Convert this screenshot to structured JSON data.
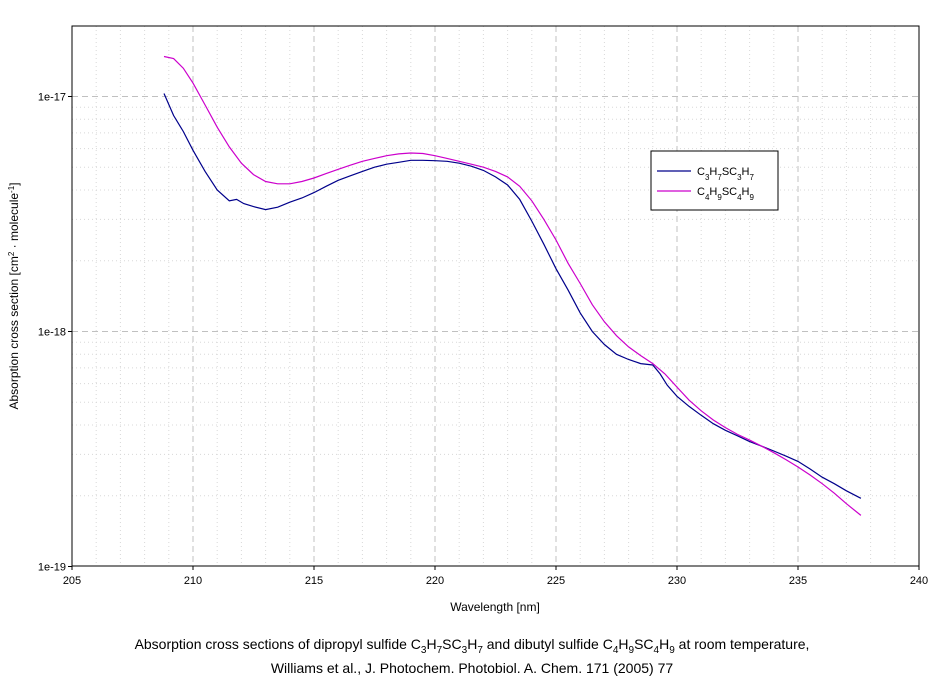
{
  "chart_data": {
    "type": "line",
    "xlabel": "Wavelength [nm]",
    "ylabel": "Absorption cross section [cm² · molecule⁻¹]",
    "ylabel_parts": {
      "text1": "Absorption cross section [cm",
      "sup1": "2",
      "text2": " · molecule",
      "sup2": "-1",
      "text3": "]"
    },
    "xlim": [
      205,
      240
    ],
    "ylim": [
      1e-19,
      2e-17
    ],
    "yscale": "log",
    "grid": true,
    "legend_position": "right",
    "x_ticks": [
      205,
      210,
      215,
      220,
      225,
      230,
      235,
      240
    ],
    "y_ticks": [
      {
        "value": 1e-19,
        "label": "1e-19"
      },
      {
        "value": 1e-18,
        "label": "1e-18"
      },
      {
        "value": 1e-17,
        "label": "1e-17"
      }
    ],
    "series": [
      {
        "name": "C3H7SC3H7",
        "legend_parts": [
          "C",
          "3",
          "H",
          "7",
          "SC",
          "3",
          "H",
          "7"
        ],
        "color": "#00008B",
        "x": [
          208.8,
          209.2,
          209.6,
          210.0,
          210.5,
          211.0,
          211.5,
          211.8,
          212.1,
          212.5,
          213.0,
          213.5,
          214.0,
          214.5,
          215.0,
          215.5,
          216.0,
          216.5,
          217.0,
          217.5,
          218.0,
          218.5,
          219.0,
          219.5,
          220.0,
          220.5,
          221.0,
          221.5,
          222.0,
          222.5,
          223.0,
          223.5,
          224.0,
          224.5,
          225.0,
          225.5,
          226.0,
          226.5,
          227.0,
          227.5,
          228.0,
          228.5,
          229.0,
          229.3,
          229.6,
          230.0,
          230.5,
          231.0,
          231.5,
          232.0,
          232.5,
          233.0,
          233.5,
          234.0,
          234.5,
          235.0,
          235.5,
          236.0,
          236.5,
          237.0,
          237.6
        ],
        "y": [
          1.03e-17,
          8.3e-18,
          7.1e-18,
          5.9e-18,
          4.8e-18,
          4e-18,
          3.6e-18,
          3.65e-18,
          3.5e-18,
          3.4e-18,
          3.3e-18,
          3.38e-18,
          3.55e-18,
          3.7e-18,
          3.9e-18,
          4.15e-18,
          4.4e-18,
          4.6e-18,
          4.8e-18,
          5e-18,
          5.15e-18,
          5.25e-18,
          5.35e-18,
          5.35e-18,
          5.33e-18,
          5.3e-18,
          5.2e-18,
          5.05e-18,
          4.85e-18,
          4.55e-18,
          4.2e-18,
          3.65e-18,
          2.95e-18,
          2.35e-18,
          1.85e-18,
          1.5e-18,
          1.2e-18,
          1e-18,
          8.8e-19,
          8e-19,
          7.6e-19,
          7.3e-19,
          7.2e-19,
          6.6e-19,
          5.9e-19,
          5.3e-19,
          4.8e-19,
          4.4e-19,
          4.05e-19,
          3.8e-19,
          3.6e-19,
          3.4e-19,
          3.25e-19,
          3.1e-19,
          2.95e-19,
          2.8e-19,
          2.6e-19,
          2.4e-19,
          2.25e-19,
          2.1e-19,
          1.95e-19
        ]
      },
      {
        "name": "C4H9SC4H9",
        "legend_parts": [
          "C",
          "4",
          "H",
          "9",
          "SC",
          "4",
          "H",
          "9"
        ],
        "color": "#CC00CC",
        "x": [
          208.8,
          209.2,
          209.6,
          210.0,
          210.5,
          211.0,
          211.5,
          212.0,
          212.5,
          213.0,
          213.5,
          214.0,
          214.5,
          215.0,
          215.5,
          216.0,
          216.5,
          217.0,
          217.5,
          218.0,
          218.5,
          219.0,
          219.5,
          220.0,
          220.5,
          221.0,
          221.5,
          222.0,
          222.5,
          223.0,
          223.5,
          224.0,
          224.5,
          225.0,
          225.5,
          226.0,
          226.5,
          227.0,
          227.5,
          228.0,
          228.5,
          229.0,
          229.5,
          230.0,
          230.5,
          231.0,
          231.5,
          232.0,
          232.5,
          233.0,
          233.5,
          234.0,
          234.5,
          235.0,
          235.5,
          236.0,
          236.5,
          237.0,
          237.6
        ],
        "y": [
          1.48e-17,
          1.45e-17,
          1.32e-17,
          1.14e-17,
          9.2e-18,
          7.4e-18,
          6.1e-18,
          5.2e-18,
          4.65e-18,
          4.35e-18,
          4.25e-18,
          4.25e-18,
          4.35e-18,
          4.5e-18,
          4.7e-18,
          4.9e-18,
          5.1e-18,
          5.3e-18,
          5.45e-18,
          5.6e-18,
          5.7e-18,
          5.75e-18,
          5.72e-18,
          5.6e-18,
          5.45e-18,
          5.3e-18,
          5.15e-18,
          5e-18,
          4.8e-18,
          4.55e-18,
          4.15e-18,
          3.6e-18,
          3e-18,
          2.45e-18,
          1.95e-18,
          1.6e-18,
          1.3e-18,
          1.1e-18,
          9.6e-19,
          8.6e-19,
          7.9e-19,
          7.3e-19,
          6.6e-19,
          5.8e-19,
          5.1e-19,
          4.6e-19,
          4.2e-19,
          3.9e-19,
          3.65e-19,
          3.45e-19,
          3.25e-19,
          3.05e-19,
          2.85e-19,
          2.65e-19,
          2.45e-19,
          2.25e-19,
          2.05e-19,
          1.85e-19,
          1.65e-19
        ]
      }
    ],
    "caption": {
      "line1_parts": [
        {
          "t": "Absorption cross sections of dipropyl sulfide C"
        },
        {
          "sub": "3"
        },
        {
          "t": "H"
        },
        {
          "sub": "7"
        },
        {
          "t": "SC"
        },
        {
          "sub": "3"
        },
        {
          "t": "H"
        },
        {
          "sub": "7"
        },
        {
          "t": " and dibutyl sulfide C"
        },
        {
          "sub": "4"
        },
        {
          "t": "H"
        },
        {
          "sub": "9"
        },
        {
          "t": "SC"
        },
        {
          "sub": "4"
        },
        {
          "t": "H"
        },
        {
          "sub": "9"
        },
        {
          "t": " at room temperature,"
        }
      ],
      "line2": "Williams et al., J. Photochem. Photobiol. A. Chem. 171 (2005) 77"
    }
  }
}
